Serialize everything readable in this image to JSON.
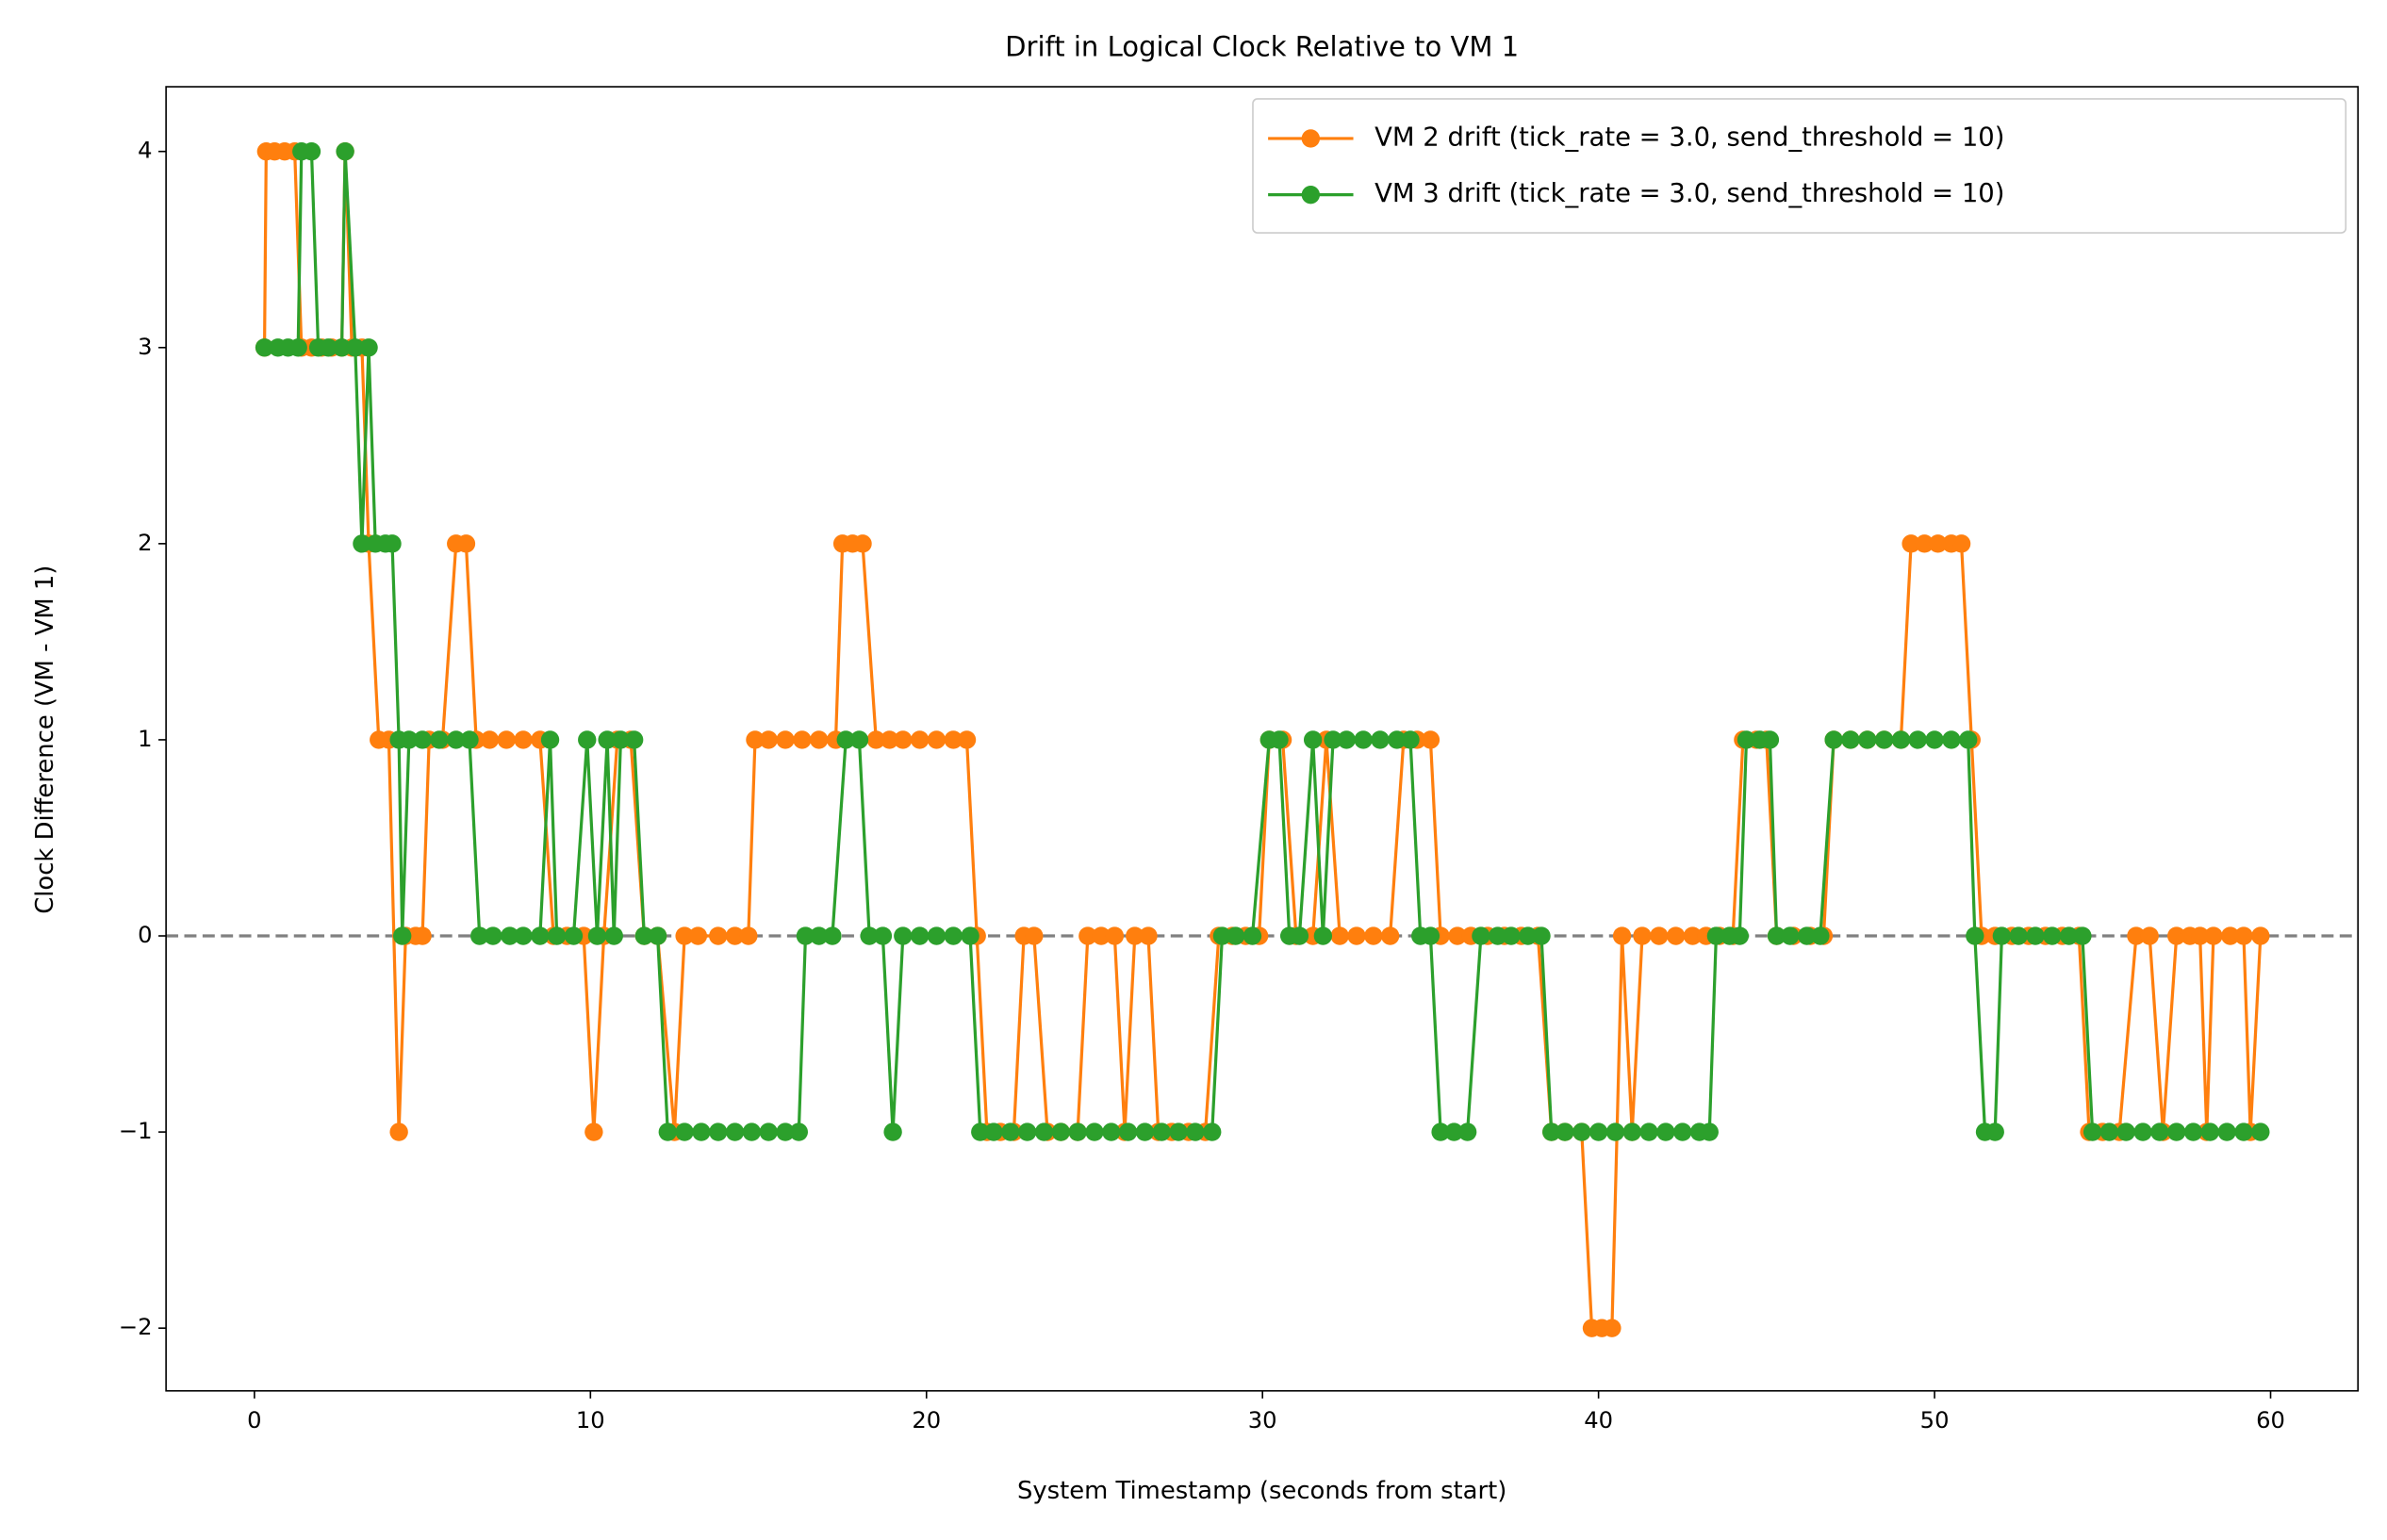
{
  "chart_data": {
    "type": "line",
    "title": "Drift in Logical Clock Relative to VM 1",
    "x_label": "System Timestamp (seconds from start)",
    "y_label": "Clock Difference (VM - VM 1)",
    "xlim": [
      -2.63,
      62.6
    ],
    "ylim": [
      -2.32,
      4.33
    ],
    "xticks": [
      0,
      10,
      20,
      30,
      40,
      50,
      60
    ],
    "yticks": [
      {
        "value": -2,
        "label": "−2"
      },
      {
        "value": -1,
        "label": "−1"
      },
      0,
      1,
      2,
      3,
      4
    ],
    "reference_line": {
      "y": 0,
      "color": "#808080",
      "style": "dashed"
    },
    "legend": "upper right",
    "series": [
      {
        "name": "VM 2 drift (tick_rate = 3.0, send_threshold = 10)",
        "color": "#ff7f0e",
        "x": [
          0.3,
          0.35,
          0.6,
          0.9,
          1.2,
          1.4,
          1.7,
          2.0,
          2.3,
          2.6,
          2.7,
          2.9,
          3.2,
          3.4,
          3.7,
          4.0,
          4.3,
          4.5,
          4.8,
          5.0,
          5.2,
          5.6,
          6.0,
          6.3,
          6.6,
          7.0,
          7.5,
          8.0,
          8.5,
          8.9,
          9.3,
          9.8,
          10.1,
          10.4,
          10.8,
          11.2,
          11.6,
          12.0,
          12.5,
          12.8,
          13.2,
          13.8,
          14.3,
          14.7,
          14.9,
          15.3,
          15.8,
          16.3,
          16.8,
          17.3,
          17.5,
          17.8,
          18.1,
          18.5,
          18.9,
          19.3,
          19.8,
          20.3,
          20.8,
          21.2,
          21.5,
          21.8,
          22.2,
          22.6,
          22.9,
          23.2,
          23.6,
          24.0,
          24.5,
          24.8,
          25.2,
          25.6,
          25.9,
          26.2,
          26.6,
          26.9,
          27.3,
          27.8,
          28.3,
          28.7,
          29.1,
          29.5,
          29.9,
          30.2,
          30.6,
          31.0,
          31.5,
          31.9,
          32.3,
          32.8,
          33.3,
          33.8,
          34.2,
          34.6,
          35.0,
          35.3,
          35.8,
          36.2,
          36.7,
          37.2,
          37.7,
          38.2,
          38.6,
          39.0,
          39.5,
          39.8,
          40.1,
          40.4,
          40.7,
          41.0,
          41.3,
          41.8,
          42.3,
          42.8,
          43.2,
          43.6,
          44.0,
          44.3,
          44.7,
          45.0,
          45.3,
          45.8,
          46.3,
          46.7,
          47.0,
          47.5,
          48.0,
          48.5,
          49.0,
          49.3,
          49.7,
          50.1,
          50.5,
          50.8,
          51.1,
          51.4,
          51.8,
          52.3,
          52.8,
          53.3,
          53.8,
          54.3,
          54.6,
          55.0,
          55.5,
          56.0,
          56.4,
          56.8,
          57.2,
          57.6,
          57.9,
          58.1,
          58.3,
          58.8,
          59.2,
          59.4,
          59.7
        ],
        "values": [
          3,
          4,
          4,
          4,
          4,
          3,
          3,
          3,
          3,
          3,
          4,
          3,
          3,
          2,
          1,
          1,
          -1,
          0,
          0,
          0,
          1,
          1,
          2,
          2,
          1,
          1,
          1,
          1,
          1,
          0,
          0,
          0,
          -1,
          0,
          1,
          1,
          0,
          0,
          -1,
          0,
          0,
          0,
          0,
          0,
          1,
          1,
          1,
          1,
          1,
          1,
          2,
          2,
          2,
          1,
          1,
          1,
          1,
          1,
          1,
          1,
          0,
          -1,
          -1,
          -1,
          0,
          0,
          -1,
          -1,
          -1,
          0,
          0,
          0,
          -1,
          0,
          0,
          -1,
          -1,
          -1,
          -1,
          0,
          0,
          0,
          0,
          1,
          1,
          0,
          0,
          1,
          0,
          0,
          0,
          0,
          1,
          1,
          1,
          0,
          0,
          0,
          0,
          0,
          0,
          0,
          -1,
          -1,
          -1,
          -2,
          -2,
          -2,
          0,
          -1,
          0,
          0,
          0,
          0,
          0,
          0,
          0,
          1,
          1,
          1,
          0,
          0,
          0,
          0,
          1,
          1,
          1,
          1,
          1,
          2,
          2,
          2,
          2,
          2,
          1,
          0,
          0,
          0,
          0,
          0,
          0,
          0,
          -1,
          -1,
          -1,
          0,
          0,
          -1,
          0,
          0,
          0,
          -1,
          0,
          0,
          0,
          -1,
          0
        ]
      },
      {
        "name": "VM 3 drift (tick_rate = 3.0, send_threshold = 10)",
        "color": "#2ca02c",
        "x": [
          0.3,
          0.7,
          1.0,
          1.3,
          1.4,
          1.7,
          1.9,
          2.2,
          2.6,
          2.7,
          3.0,
          3.2,
          3.4,
          3.6,
          3.9,
          4.1,
          4.3,
          4.4,
          4.6,
          5.0,
          5.5,
          6.0,
          6.4,
          6.7,
          7.1,
          7.6,
          8.0,
          8.5,
          8.8,
          9.0,
          9.5,
          9.9,
          10.2,
          10.5,
          10.7,
          10.9,
          11.3,
          11.6,
          12.0,
          12.3,
          12.8,
          13.3,
          13.8,
          14.3,
          14.8,
          15.3,
          15.8,
          16.2,
          16.4,
          16.8,
          17.2,
          17.6,
          18.0,
          18.3,
          18.7,
          19.0,
          19.3,
          19.8,
          20.3,
          20.8,
          21.3,
          21.6,
          22.0,
          22.5,
          23.0,
          23.5,
          24.0,
          24.5,
          25.0,
          25.5,
          26.0,
          26.5,
          27.0,
          27.5,
          28.0,
          28.5,
          28.8,
          29.2,
          29.7,
          30.2,
          30.5,
          30.8,
          31.1,
          31.5,
          31.8,
          32.1,
          32.5,
          33.0,
          33.5,
          34.0,
          34.4,
          34.7,
          35.0,
          35.3,
          35.7,
          36.1,
          36.5,
          37.0,
          37.4,
          37.9,
          38.3,
          38.6,
          39.0,
          39.5,
          40.0,
          40.5,
          41.0,
          41.5,
          42.0,
          42.5,
          43.0,
          43.3,
          43.5,
          43.9,
          44.2,
          44.4,
          44.8,
          45.1,
          45.3,
          45.7,
          46.2,
          46.6,
          47.0,
          47.5,
          48.0,
          48.5,
          49.0,
          49.5,
          50.0,
          50.5,
          51.0,
          51.2,
          51.5,
          51.8,
          52.0,
          52.5,
          53.0,
          53.5,
          54.0,
          54.4,
          54.7,
          55.2,
          55.7,
          56.2,
          56.7,
          57.2,
          57.7,
          58.2,
          58.7,
          59.2,
          59.7
        ],
        "values": [
          3,
          3,
          3,
          3,
          4,
          4,
          3,
          3,
          3,
          4,
          3,
          2,
          3,
          2,
          2,
          2,
          1,
          0,
          1,
          1,
          1,
          1,
          1,
          0,
          0,
          0,
          0,
          0,
          1,
          0,
          0,
          1,
          0,
          1,
          0,
          1,
          1,
          0,
          0,
          -1,
          -1,
          -1,
          -1,
          -1,
          -1,
          -1,
          -1,
          -1,
          0,
          0,
          0,
          1,
          1,
          0,
          0,
          -1,
          0,
          0,
          0,
          0,
          0,
          -1,
          -1,
          -1,
          -1,
          -1,
          -1,
          -1,
          -1,
          -1,
          -1,
          -1,
          -1,
          -1,
          -1,
          -1,
          0,
          0,
          0,
          1,
          1,
          0,
          0,
          1,
          0,
          1,
          1,
          1,
          1,
          1,
          1,
          0,
          0,
          -1,
          -1,
          -1,
          0,
          0,
          0,
          0,
          0,
          -1,
          -1,
          -1,
          -1,
          -1,
          -1,
          -1,
          -1,
          -1,
          -1,
          -1,
          0,
          0,
          0,
          1,
          1,
          1,
          0,
          0,
          0,
          0,
          1,
          1,
          1,
          1,
          1,
          1,
          1,
          1,
          1,
          0,
          -1,
          -1,
          0,
          0,
          0,
          0,
          0,
          0,
          -1,
          -1,
          -1,
          -1,
          -1,
          -1,
          -1,
          -1,
          -1,
          -1,
          -1
        ]
      }
    ]
  }
}
